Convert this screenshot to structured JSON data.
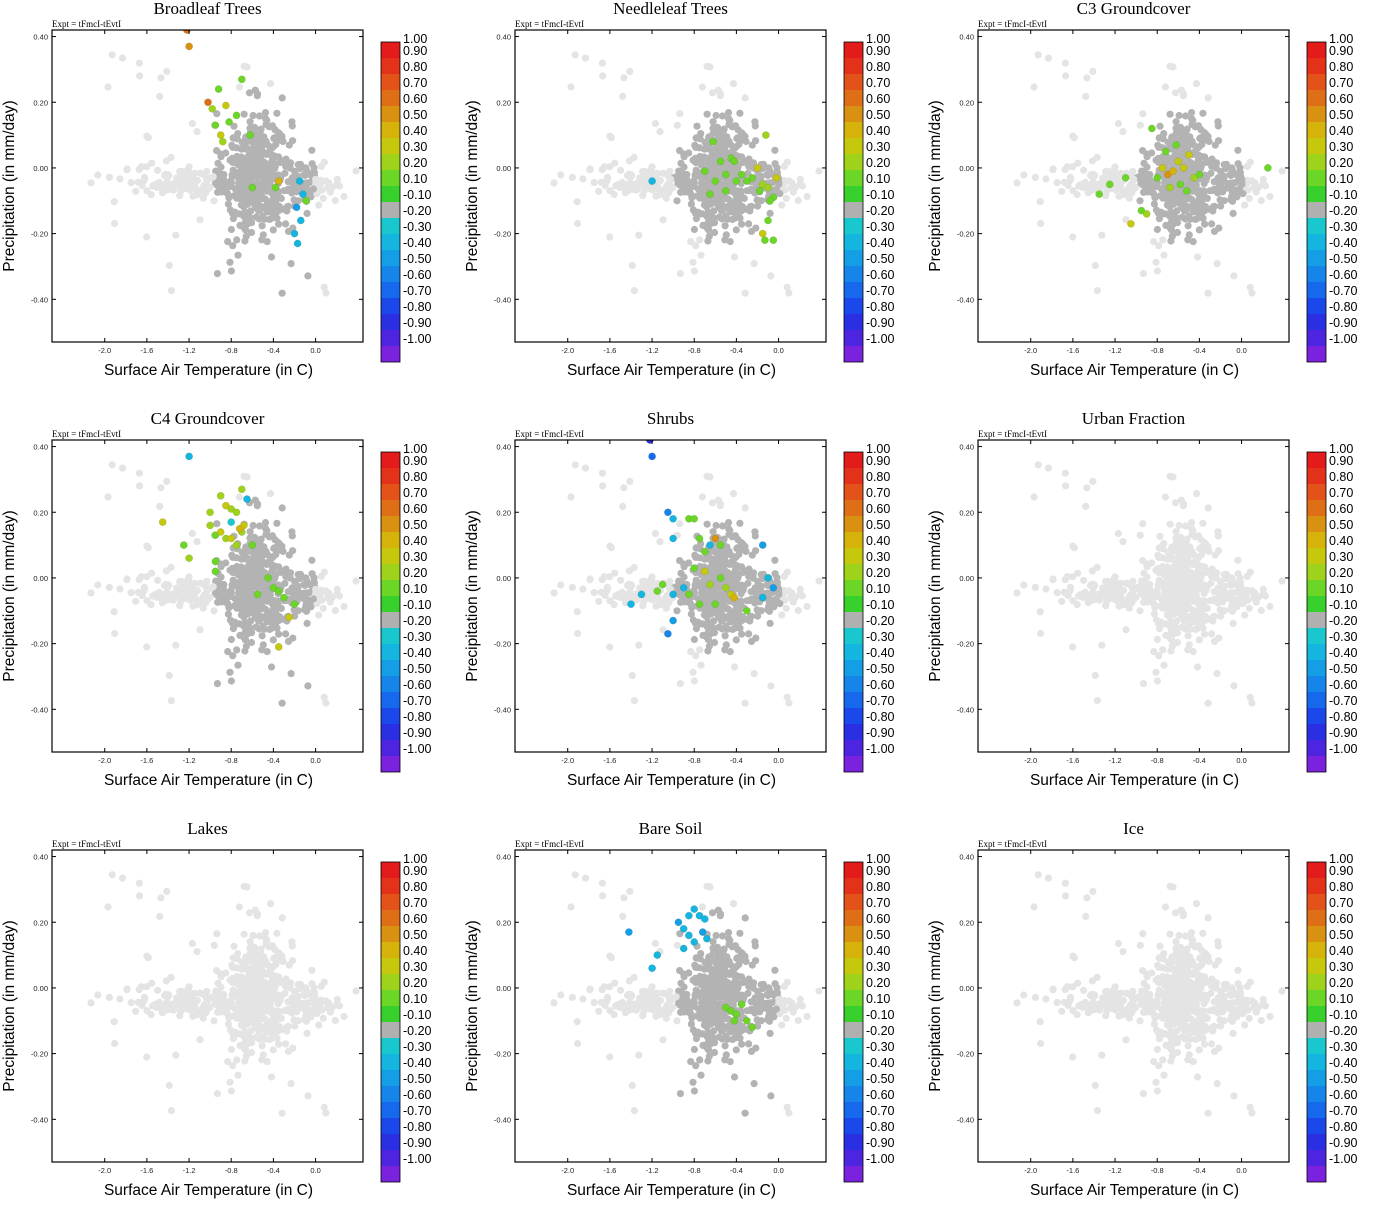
{
  "figure": {
    "expt_label": "Expt = tFmcI-tEvtI",
    "xlabel": "Surface Air Temperature (in C)",
    "ylabel": "Precipitation (in mm/day)"
  },
  "chart_data": {
    "type": "scatter",
    "xlim": [
      -2.5,
      0.45
    ],
    "ylim": [
      -0.53,
      0.42
    ],
    "xticks": [
      -2.0,
      -1.6,
      -1.2,
      -0.8,
      -0.4,
      0.0
    ],
    "xtick_labels": [
      "-2.0",
      "-1.6",
      "-1.2",
      "-0.8",
      "-0.4",
      "0.0"
    ],
    "yticks": [
      0.4,
      0.2,
      0.0,
      -0.2,
      -0.4
    ],
    "ytick_labels": [
      "0.40",
      "0.20",
      "0.00",
      "-0.20",
      "-0.40"
    ],
    "colorbar": {
      "labels": [
        "1.00",
        "0.90",
        "0.80",
        "0.70",
        "0.60",
        "0.50",
        "0.40",
        "0.30",
        "0.20",
        "0.10",
        "-0.10",
        "-0.20",
        "-0.30",
        "-0.40",
        "-0.50",
        "-0.60",
        "-0.70",
        "-0.80",
        "-0.90",
        "-1.00"
      ],
      "colors": [
        "#e41b1b",
        "#e4321a",
        "#e25219",
        "#de6f17",
        "#d89111",
        "#d5b30b",
        "#c6c80e",
        "#9fd31b",
        "#6cd627",
        "#38d02c",
        "#b0b0b0",
        "#19c8cf",
        "#14b6e0",
        "#149ee6",
        "#1585ea",
        "#1669ec",
        "#1a48ea",
        "#2b2fe4",
        "#4d25e0",
        "#7b22df"
      ]
    },
    "missing_color": "#e4e4e4",
    "panels": [
      {
        "title": "Broadleaf Trees",
        "background_shape": "cross",
        "highlights": [
          {
            "x": -1.22,
            "y": 0.42,
            "c": 0.65
          },
          {
            "x": -1.2,
            "y": 0.37,
            "c": 0.55
          },
          {
            "x": -1.02,
            "y": 0.2,
            "c": 0.7
          },
          {
            "x": -0.92,
            "y": 0.24,
            "c": 0.15
          },
          {
            "x": -0.98,
            "y": 0.18,
            "c": 0.25
          },
          {
            "x": -0.85,
            "y": 0.19,
            "c": 0.35
          },
          {
            "x": -0.7,
            "y": 0.27,
            "c": 0.15
          },
          {
            "x": -0.95,
            "y": 0.13,
            "c": 0.15
          },
          {
            "x": -0.9,
            "y": 0.1,
            "c": 0.4
          },
          {
            "x": -0.82,
            "y": 0.14,
            "c": 0.15
          },
          {
            "x": -0.75,
            "y": 0.16,
            "c": 0.15
          },
          {
            "x": -0.88,
            "y": 0.08,
            "c": 0.3
          },
          {
            "x": -0.62,
            "y": 0.1,
            "c": 0.15
          },
          {
            "x": -0.6,
            "y": -0.06,
            "c": 0.15
          },
          {
            "x": -0.38,
            "y": -0.06,
            "c": 0.15
          },
          {
            "x": -0.35,
            "y": -0.04,
            "c": 0.45
          },
          {
            "x": -0.15,
            "y": -0.04,
            "c": -0.25
          },
          {
            "x": -0.12,
            "y": -0.08,
            "c": -0.3
          },
          {
            "x": -0.09,
            "y": -0.1,
            "c": 0.15
          },
          {
            "x": -0.18,
            "y": -0.12,
            "c": -0.35
          },
          {
            "x": -0.14,
            "y": -0.16,
            "c": -0.3
          },
          {
            "x": -0.2,
            "y": -0.2,
            "c": -0.3
          },
          {
            "x": -0.17,
            "y": -0.23,
            "c": -0.25
          }
        ]
      },
      {
        "title": "Needleleaf Trees",
        "background_shape": "blob",
        "highlights": [
          {
            "x": -1.2,
            "y": -0.04,
            "c": -0.25
          },
          {
            "x": -0.62,
            "y": 0.08,
            "c": 0.15
          },
          {
            "x": -0.7,
            "y": -0.01,
            "c": 0.15
          },
          {
            "x": -0.6,
            "y": -0.04,
            "c": 0.15
          },
          {
            "x": -0.55,
            "y": 0.02,
            "c": 0.2
          },
          {
            "x": -0.5,
            "y": -0.02,
            "c": 0.15
          },
          {
            "x": -0.45,
            "y": 0.03,
            "c": 0.15
          },
          {
            "x": -0.4,
            "y": -0.04,
            "c": 0.15
          },
          {
            "x": -0.35,
            "y": -0.02,
            "c": 0.15
          },
          {
            "x": -0.3,
            "y": -0.04,
            "c": 0.15
          },
          {
            "x": -0.25,
            "y": -0.03,
            "c": 0.15
          },
          {
            "x": -0.2,
            "y": 0.0,
            "c": 0.35
          },
          {
            "x": -0.15,
            "y": -0.05,
            "c": 0.25
          },
          {
            "x": -0.1,
            "y": -0.06,
            "c": 0.3
          },
          {
            "x": -0.05,
            "y": -0.09,
            "c": 0.15
          },
          {
            "x": -0.02,
            "y": -0.03,
            "c": 0.4
          },
          {
            "x": -0.12,
            "y": 0.1,
            "c": 0.3
          },
          {
            "x": -0.15,
            "y": -0.2,
            "c": 0.35
          },
          {
            "x": -0.1,
            "y": -0.16,
            "c": 0.15
          },
          {
            "x": -0.05,
            "y": -0.22,
            "c": 0.15
          },
          {
            "x": -0.13,
            "y": -0.22,
            "c": 0.15
          },
          {
            "x": -0.42,
            "y": 0.02,
            "c": 0.15
          },
          {
            "x": -0.65,
            "y": -0.08,
            "c": 0.15
          },
          {
            "x": -0.08,
            "y": -0.1,
            "c": 0.15
          },
          {
            "x": -0.18,
            "y": -0.07,
            "c": 0.15
          },
          {
            "x": -0.5,
            "y": -0.07,
            "c": 0.2
          }
        ]
      },
      {
        "title": "C3 Groundcover",
        "background_shape": "blob",
        "highlights": [
          {
            "x": -1.35,
            "y": -0.08,
            "c": 0.15
          },
          {
            "x": -1.25,
            "y": -0.05,
            "c": 0.15
          },
          {
            "x": -1.1,
            "y": -0.03,
            "c": 0.15
          },
          {
            "x": -1.05,
            "y": -0.17,
            "c": 0.35
          },
          {
            "x": -0.95,
            "y": -0.13,
            "c": 0.15
          },
          {
            "x": -0.9,
            "y": -0.14,
            "c": 0.25
          },
          {
            "x": -0.85,
            "y": 0.12,
            "c": 0.15
          },
          {
            "x": -0.8,
            "y": -0.03,
            "c": 0.15
          },
          {
            "x": -0.75,
            "y": 0.0,
            "c": 0.35
          },
          {
            "x": -0.7,
            "y": -0.02,
            "c": 0.55
          },
          {
            "x": -0.65,
            "y": -0.01,
            "c": 0.5
          },
          {
            "x": -0.6,
            "y": 0.02,
            "c": 0.4
          },
          {
            "x": -0.55,
            "y": 0.0,
            "c": 0.35
          },
          {
            "x": -0.5,
            "y": 0.04,
            "c": 0.4
          },
          {
            "x": -0.45,
            "y": -0.03,
            "c": 0.25
          },
          {
            "x": -0.4,
            "y": -0.02,
            "c": 0.15
          },
          {
            "x": -0.68,
            "y": -0.06,
            "c": 0.3
          },
          {
            "x": -0.58,
            "y": -0.05,
            "c": 0.15
          },
          {
            "x": -0.52,
            "y": -0.07,
            "c": 0.15
          },
          {
            "x": 0.25,
            "y": 0.0,
            "c": 0.15
          },
          {
            "x": -0.62,
            "y": 0.07,
            "c": 0.15
          },
          {
            "x": -0.72,
            "y": 0.05,
            "c": 0.15
          }
        ]
      },
      {
        "title": "C4 Groundcover",
        "background_shape": "cross",
        "highlights": [
          {
            "x": -1.2,
            "y": 0.37,
            "c": -0.25
          },
          {
            "x": -0.9,
            "y": 0.25,
            "c": 0.3
          },
          {
            "x": -0.85,
            "y": 0.22,
            "c": 0.35
          },
          {
            "x": -0.8,
            "y": 0.21,
            "c": 0.3
          },
          {
            "x": -0.75,
            "y": 0.2,
            "c": 0.25
          },
          {
            "x": -0.7,
            "y": 0.27,
            "c": 0.25
          },
          {
            "x": -0.65,
            "y": 0.24,
            "c": -0.25
          },
          {
            "x": -1.0,
            "y": 0.2,
            "c": 0.3
          },
          {
            "x": -1.0,
            "y": 0.16,
            "c": 0.25
          },
          {
            "x": -0.95,
            "y": 0.13,
            "c": 0.2
          },
          {
            "x": -0.9,
            "y": 0.14,
            "c": 0.35
          },
          {
            "x": -0.85,
            "y": 0.12,
            "c": 0.3
          },
          {
            "x": -0.8,
            "y": 0.12,
            "c": 0.4
          },
          {
            "x": -0.75,
            "y": 0.1,
            "c": 0.3
          },
          {
            "x": -0.7,
            "y": 0.14,
            "c": 0.25
          },
          {
            "x": -0.68,
            "y": 0.16,
            "c": 0.4
          },
          {
            "x": -1.45,
            "y": 0.17,
            "c": 0.35
          },
          {
            "x": -1.25,
            "y": 0.1,
            "c": 0.15
          },
          {
            "x": -1.2,
            "y": 0.06,
            "c": 0.25
          },
          {
            "x": -0.95,
            "y": 0.05,
            "c": 0.15
          },
          {
            "x": -0.95,
            "y": 0.02,
            "c": 0.15
          },
          {
            "x": -0.6,
            "y": 0.1,
            "c": 0.15
          },
          {
            "x": -0.45,
            "y": 0.0,
            "c": 0.15
          },
          {
            "x": -0.4,
            "y": -0.03,
            "c": 0.15
          },
          {
            "x": -0.35,
            "y": -0.04,
            "c": 0.15
          },
          {
            "x": -0.3,
            "y": -0.06,
            "c": 0.15
          },
          {
            "x": -0.2,
            "y": -0.08,
            "c": 0.15
          },
          {
            "x": -0.25,
            "y": -0.12,
            "c": 0.35
          },
          {
            "x": -0.35,
            "y": -0.21,
            "c": 0.35
          },
          {
            "x": -0.55,
            "y": -0.05,
            "c": 0.15
          },
          {
            "x": -0.8,
            "y": 0.17,
            "c": -0.2
          },
          {
            "x": -0.72,
            "y": 0.15,
            "c": 0.45
          }
        ]
      },
      {
        "title": "Shrubs",
        "background_shape": "blob",
        "highlights": [
          {
            "x": -1.22,
            "y": 0.42,
            "c": -0.75
          },
          {
            "x": -1.2,
            "y": 0.37,
            "c": -0.55
          },
          {
            "x": -1.05,
            "y": 0.2,
            "c": -0.45
          },
          {
            "x": -1.0,
            "y": 0.18,
            "c": -0.3
          },
          {
            "x": -1.0,
            "y": 0.12,
            "c": -0.3
          },
          {
            "x": -0.85,
            "y": 0.18,
            "c": 0.15
          },
          {
            "x": -0.8,
            "y": 0.18,
            "c": 0.15
          },
          {
            "x": -0.75,
            "y": 0.12,
            "c": 0.15
          },
          {
            "x": -0.7,
            "y": 0.08,
            "c": 0.15
          },
          {
            "x": -0.65,
            "y": 0.1,
            "c": -0.25
          },
          {
            "x": -0.6,
            "y": 0.12,
            "c": 0.55
          },
          {
            "x": -0.55,
            "y": 0.1,
            "c": 0.15
          },
          {
            "x": -0.8,
            "y": 0.03,
            "c": 0.15
          },
          {
            "x": -0.7,
            "y": 0.02,
            "c": 0.35
          },
          {
            "x": -0.65,
            "y": -0.02,
            "c": 0.25
          },
          {
            "x": -0.55,
            "y": 0.0,
            "c": 0.15
          },
          {
            "x": -0.5,
            "y": -0.03,
            "c": 0.3
          },
          {
            "x": -0.45,
            "y": -0.05,
            "c": 0.4
          },
          {
            "x": -0.42,
            "y": -0.06,
            "c": 0.45
          },
          {
            "x": -0.75,
            "y": -0.08,
            "c": 0.15
          },
          {
            "x": -0.85,
            "y": -0.05,
            "c": 0.15
          },
          {
            "x": -0.9,
            "y": -0.03,
            "c": -0.25
          },
          {
            "x": -1.0,
            "y": -0.05,
            "c": -0.3
          },
          {
            "x": -1.1,
            "y": -0.02,
            "c": 0.15
          },
          {
            "x": -1.15,
            "y": -0.04,
            "c": 0.2
          },
          {
            "x": -1.3,
            "y": -0.05,
            "c": -0.3
          },
          {
            "x": -1.4,
            "y": -0.08,
            "c": -0.3
          },
          {
            "x": -1.05,
            "y": -0.17,
            "c": -0.45
          },
          {
            "x": -1.0,
            "y": -0.13,
            "c": -0.35
          },
          {
            "x": -0.15,
            "y": 0.1,
            "c": -0.35
          },
          {
            "x": -0.1,
            "y": 0.0,
            "c": -0.3
          },
          {
            "x": -0.05,
            "y": -0.03,
            "c": -0.35
          },
          {
            "x": -0.15,
            "y": -0.06,
            "c": -0.25
          },
          {
            "x": -0.6,
            "y": -0.08,
            "c": 0.15
          },
          {
            "x": -0.3,
            "y": -0.1,
            "c": 0.15
          }
        ]
      },
      {
        "title": "Urban Fraction",
        "background_shape": "blob",
        "highlights": []
      },
      {
        "title": "Lakes",
        "background_shape": "blob",
        "highlights": []
      },
      {
        "title": "Bare Soil",
        "background_shape": "cross",
        "highlights": [
          {
            "x": -1.42,
            "y": 0.17,
            "c": -0.4
          },
          {
            "x": -1.15,
            "y": 0.1,
            "c": -0.25
          },
          {
            "x": -1.2,
            "y": 0.06,
            "c": -0.3
          },
          {
            "x": -0.95,
            "y": 0.2,
            "c": -0.35
          },
          {
            "x": -0.9,
            "y": 0.18,
            "c": -0.3
          },
          {
            "x": -0.85,
            "y": 0.22,
            "c": -0.3
          },
          {
            "x": -0.8,
            "y": 0.24,
            "c": -0.3
          },
          {
            "x": -0.75,
            "y": 0.22,
            "c": -0.25
          },
          {
            "x": -0.7,
            "y": 0.21,
            "c": -0.3
          },
          {
            "x": -0.72,
            "y": 0.17,
            "c": -0.35
          },
          {
            "x": -0.68,
            "y": 0.15,
            "c": -0.3
          },
          {
            "x": -0.8,
            "y": 0.14,
            "c": -0.25
          },
          {
            "x": -0.9,
            "y": 0.12,
            "c": -0.25
          },
          {
            "x": -0.85,
            "y": 0.16,
            "c": -0.3
          },
          {
            "x": -0.5,
            "y": -0.06,
            "c": 0.15
          },
          {
            "x": -0.45,
            "y": -0.07,
            "c": 0.15
          },
          {
            "x": -0.4,
            "y": -0.08,
            "c": 0.15
          },
          {
            "x": -0.35,
            "y": -0.05,
            "c": 0.15
          },
          {
            "x": -0.3,
            "y": -0.1,
            "c": 0.15
          },
          {
            "x": -0.25,
            "y": -0.12,
            "c": 0.15
          },
          {
            "x": -0.42,
            "y": -0.1,
            "c": 0.15
          }
        ]
      },
      {
        "title": "Ice",
        "background_shape": "blob",
        "highlights": []
      }
    ]
  }
}
